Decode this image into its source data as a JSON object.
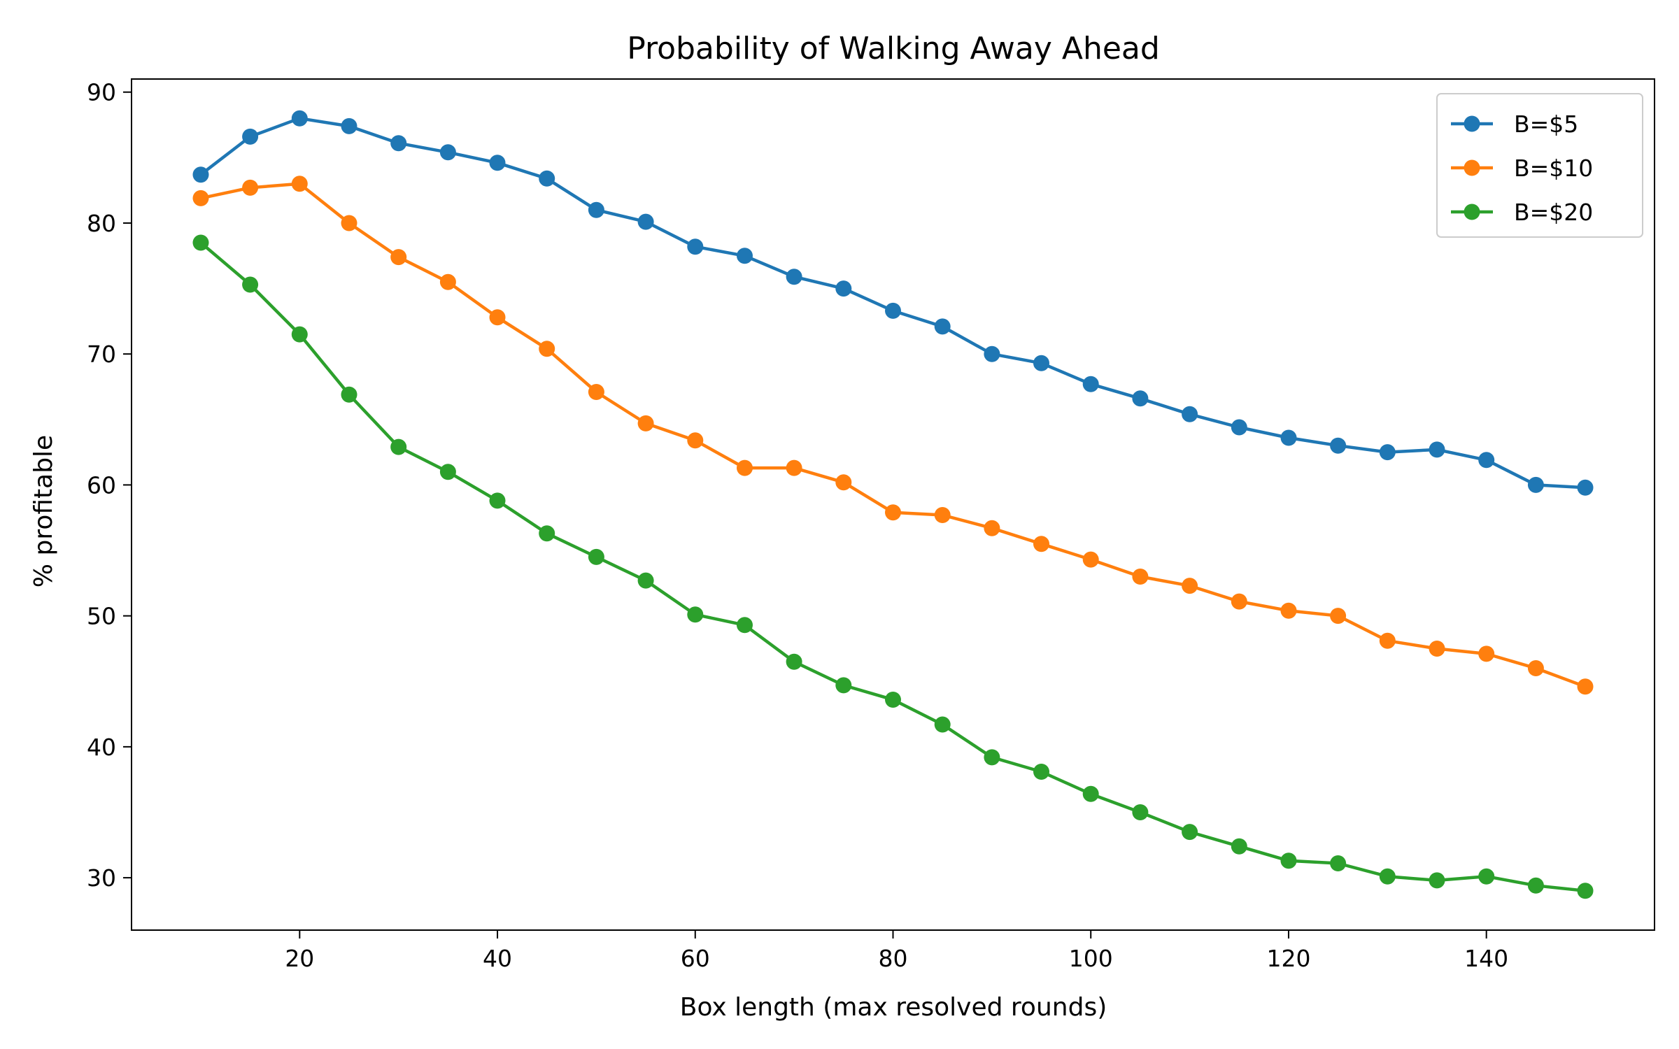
{
  "chart_data": {
    "type": "line",
    "title": "Probability of Walking Away Ahead",
    "xlabel": "Box length (max resolved rounds)",
    "ylabel": "% profitable",
    "xlim": [
      3,
      157
    ],
    "ylim": [
      26,
      91
    ],
    "xticks": [
      20,
      40,
      60,
      80,
      100,
      120,
      140
    ],
    "yticks": [
      30,
      40,
      50,
      60,
      70,
      80,
      90
    ],
    "grid": false,
    "legend_position": "top-right",
    "x": [
      10,
      15,
      20,
      25,
      30,
      35,
      40,
      45,
      50,
      55,
      60,
      65,
      70,
      75,
      80,
      85,
      90,
      95,
      100,
      105,
      110,
      115,
      120,
      125,
      130,
      135,
      140,
      145,
      150
    ],
    "series": [
      {
        "name": "B=$5",
        "color": "#1f77b4",
        "values": [
          83.7,
          86.6,
          88.0,
          87.4,
          86.1,
          85.4,
          84.6,
          83.4,
          81.0,
          80.1,
          78.2,
          77.5,
          75.9,
          75.0,
          73.3,
          72.1,
          70.0,
          69.3,
          67.7,
          66.6,
          65.4,
          64.4,
          63.6,
          63.0,
          62.5,
          62.7,
          61.9,
          60.0,
          59.8
        ]
      },
      {
        "name": "B=$10",
        "color": "#ff7f0e",
        "values": [
          81.9,
          82.7,
          83.0,
          80.0,
          77.4,
          75.5,
          72.8,
          70.4,
          67.1,
          64.7,
          63.4,
          61.3,
          61.3,
          60.2,
          57.9,
          57.7,
          56.7,
          55.5,
          54.3,
          53.0,
          52.3,
          51.1,
          50.4,
          50.0,
          48.1,
          47.5,
          47.1,
          46.0,
          44.6
        ]
      },
      {
        "name": "B=$20",
        "color": "#2ca02c",
        "values": [
          78.5,
          75.3,
          71.5,
          66.9,
          62.9,
          61.0,
          58.8,
          56.3,
          54.5,
          52.7,
          50.1,
          49.3,
          46.5,
          44.7,
          43.6,
          41.7,
          39.2,
          38.1,
          36.4,
          35.0,
          33.5,
          32.4,
          31.3,
          31.1,
          30.1,
          29.8,
          30.1,
          29.4,
          29.0
        ]
      }
    ]
  }
}
